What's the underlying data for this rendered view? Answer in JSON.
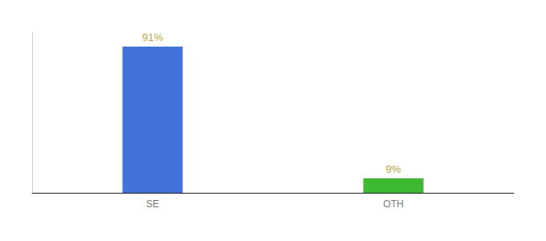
{
  "chart_data": {
    "type": "bar",
    "categories": [
      "SE",
      "OTH"
    ],
    "values": [
      91,
      9
    ],
    "value_labels": [
      "91%",
      "9%"
    ],
    "data_labels": true,
    "colors": [
      "#4472db",
      "#3cb832"
    ],
    "ylim": [
      0,
      100
    ],
    "tick_labels": "x",
    "grid": false
  }
}
